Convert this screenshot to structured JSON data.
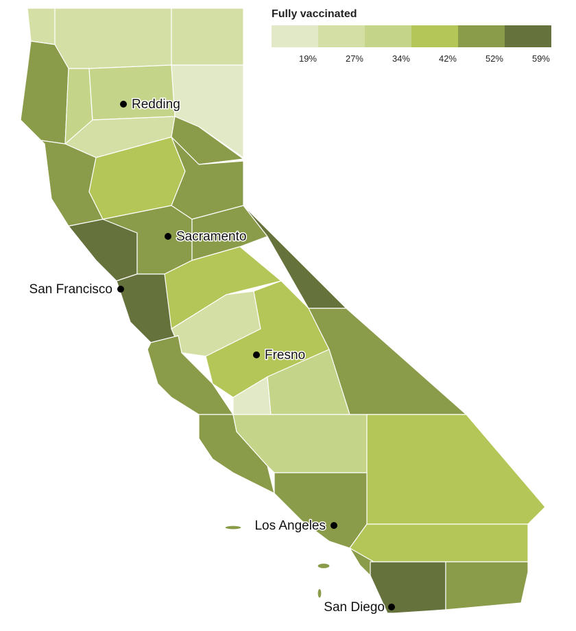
{
  "legend": {
    "title": "Fully vaccinated",
    "colors": [
      "#e2e9c6",
      "#d4dfa6",
      "#c4d58a",
      "#b3c657",
      "#8a9c4a",
      "#65723c"
    ],
    "breaks": [
      {
        "value": 19,
        "label": "19%"
      },
      {
        "value": 27,
        "label": "27%"
      },
      {
        "value": 34,
        "label": "34%"
      },
      {
        "value": 42,
        "label": "42%"
      },
      {
        "value": 52,
        "label": "52%"
      },
      {
        "value": 59,
        "label": "59%"
      }
    ]
  },
  "cities": [
    {
      "name": "Redding"
    },
    {
      "name": "Sacramento"
    },
    {
      "name": "San Francisco"
    },
    {
      "name": "Fresno"
    },
    {
      "name": "Los Angeles"
    },
    {
      "name": "San Diego"
    }
  ]
}
